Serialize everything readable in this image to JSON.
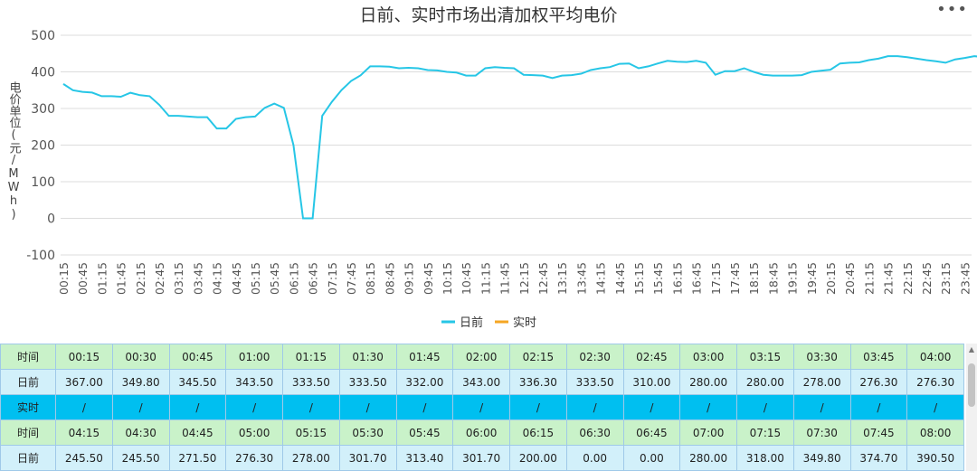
{
  "chart_data": {
    "type": "line",
    "title": "日前、实时市场出清加权平均电价",
    "ylabel": "电价单位(元/MWh)",
    "ylim": [
      -100,
      500
    ],
    "yticks": [
      -100,
      0,
      100,
      200,
      300,
      400,
      500
    ],
    "grid": true,
    "legend_position": "bottom",
    "x_tick_labels": [
      "00:15",
      "00:45",
      "01:15",
      "01:45",
      "02:15",
      "02:45",
      "03:15",
      "03:45",
      "04:15",
      "04:45",
      "05:15",
      "05:45",
      "06:15",
      "06:45",
      "07:15",
      "07:45",
      "08:15",
      "08:45",
      "09:15",
      "09:45",
      "10:15",
      "10:45",
      "11:15",
      "11:45",
      "12:15",
      "12:45",
      "13:15",
      "13:45",
      "14:15",
      "14:45",
      "15:15",
      "15:45",
      "16:15",
      "16:45",
      "17:15",
      "17:45",
      "18:15",
      "18:45",
      "19:15",
      "19:45",
      "20:15",
      "20:45",
      "21:15",
      "21:45",
      "22:15",
      "22:45",
      "23:15",
      "23:45"
    ],
    "series": [
      {
        "name": "日前",
        "color": "#26c6e6",
        "values": [
          367,
          349.8,
          345.5,
          343.5,
          333.5,
          333.5,
          332,
          343,
          336.3,
          333.5,
          310,
          280,
          280,
          278,
          276.3,
          276.3,
          245.5,
          245.5,
          271.5,
          276.3,
          278,
          301.7,
          313.4,
          301.7,
          200,
          0,
          0,
          280,
          318,
          349.8,
          374.7,
          390.5,
          415,
          415,
          414,
          410,
          411,
          410,
          405,
          404,
          400,
          398,
          390,
          390,
          410,
          413,
          411,
          410,
          392,
          391,
          390,
          383,
          390,
          391,
          395,
          405,
          410,
          413,
          422,
          423,
          410,
          415,
          423,
          430,
          428,
          427,
          430,
          425,
          392,
          402,
          402,
          410,
          400,
          392,
          390,
          390,
          390,
          391,
          400,
          403,
          406,
          423,
          425,
          426,
          432,
          436,
          443,
          443,
          440,
          436,
          432,
          429,
          425,
          434,
          438,
          443,
          440
        ]
      },
      {
        "name": "实时",
        "color": "#f5a623",
        "values": []
      }
    ]
  },
  "ui": {
    "more_icon": "more-horizontal-icon",
    "more_glyph": "•••"
  },
  "table": {
    "rows": [
      {
        "type": "time",
        "label": "时间",
        "cells": [
          "00:15",
          "00:30",
          "00:45",
          "01:00",
          "01:15",
          "01:30",
          "01:45",
          "02:00",
          "02:15",
          "02:30",
          "02:45",
          "03:00",
          "03:15",
          "03:30",
          "03:45",
          "04:00"
        ]
      },
      {
        "type": "da",
        "label": "日前",
        "cells": [
          "367.00",
          "349.80",
          "345.50",
          "343.50",
          "333.50",
          "333.50",
          "332.00",
          "343.00",
          "336.30",
          "333.50",
          "310.00",
          "280.00",
          "280.00",
          "278.00",
          "276.30",
          "276.30"
        ]
      },
      {
        "type": "rt",
        "label": "实时",
        "cells": [
          "/",
          "/",
          "/",
          "/",
          "/",
          "/",
          "/",
          "/",
          "/",
          "/",
          "/",
          "/",
          "/",
          "/",
          "/",
          "/"
        ]
      },
      {
        "type": "time",
        "label": "时间",
        "cells": [
          "04:15",
          "04:30",
          "04:45",
          "05:00",
          "05:15",
          "05:30",
          "05:45",
          "06:00",
          "06:15",
          "06:30",
          "06:45",
          "07:00",
          "07:15",
          "07:30",
          "07:45",
          "08:00"
        ]
      },
      {
        "type": "da",
        "label": "日前",
        "cells": [
          "245.50",
          "245.50",
          "271.50",
          "276.30",
          "278.00",
          "301.70",
          "313.40",
          "301.70",
          "200.00",
          "0.00",
          "0.00",
          "280.00",
          "318.00",
          "349.80",
          "374.70",
          "390.50"
        ]
      }
    ]
  }
}
